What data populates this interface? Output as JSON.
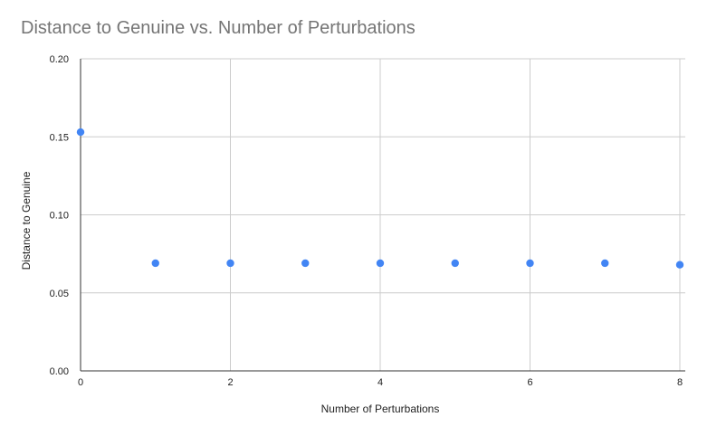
{
  "chart_data": {
    "type": "scatter",
    "title": "Distance to Genuine vs. Number of Perturbations",
    "xlabel": "Number of Perturbations",
    "ylabel": "Distance to Genuine",
    "xlim": [
      0,
      8
    ],
    "ylim": [
      0,
      0.2
    ],
    "x_ticks": [
      "0",
      "2",
      "4",
      "6",
      "8"
    ],
    "y_ticks": [
      "0.00",
      "0.05",
      "0.10",
      "0.15",
      "0.20"
    ],
    "grid": true,
    "legend": "none",
    "point_color": "#4285f4",
    "series": [
      {
        "x": [
          0,
          1,
          2,
          3,
          4,
          5,
          6,
          7,
          8
        ],
        "y": [
          0.153,
          0.069,
          0.069,
          0.069,
          0.069,
          0.069,
          0.069,
          0.069,
          0.068
        ]
      }
    ]
  }
}
